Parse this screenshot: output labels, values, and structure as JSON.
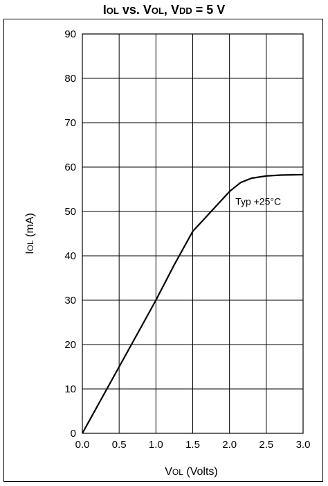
{
  "chart_data": {
    "type": "line",
    "title": "IOL vs. VOL, VDD = 5 V",
    "xlabel": "VOL (Volts)",
    "ylabel": "IOL (mA)",
    "xlim": [
      0,
      3.0
    ],
    "ylim": [
      0,
      90
    ],
    "x_ticks": [
      "0.0",
      "0.5",
      "1.0",
      "1.5",
      "2.0",
      "2.5",
      "3.0"
    ],
    "y_ticks": [
      "0",
      "10",
      "20",
      "30",
      "40",
      "50",
      "60",
      "70",
      "80",
      "90"
    ],
    "grid": true,
    "series": [
      {
        "x": [
          0.0,
          0.25,
          0.5,
          0.75,
          1.0,
          1.25,
          1.5,
          1.75,
          2.0,
          2.15,
          2.3,
          2.5,
          2.7,
          3.0
        ],
        "y": [
          0,
          7.5,
          15,
          22.5,
          30,
          38,
          45.5,
          50,
          54.5,
          56.5,
          57.5,
          58,
          58.2,
          58.3
        ]
      }
    ],
    "annotations": [
      {
        "text": "Typ +25°C",
        "x": 2.08,
        "y": 51.5
      }
    ]
  }
}
